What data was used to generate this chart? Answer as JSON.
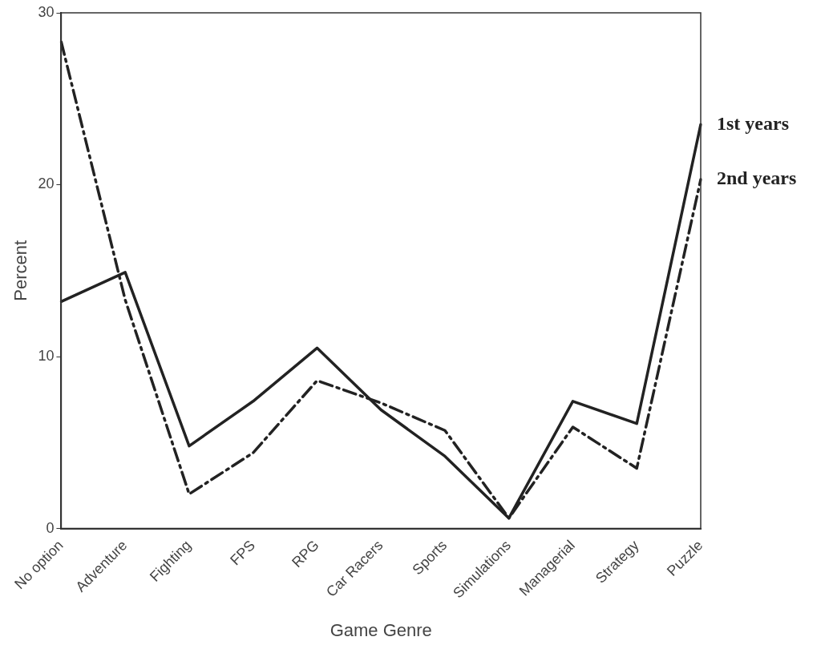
{
  "chart_data": {
    "type": "line",
    "xlabel": "Game Genre",
    "ylabel": "Percent",
    "categories": [
      "No option",
      "Adventure",
      "Fighting",
      "FPS",
      "RPG",
      "Car Racers",
      "Sports",
      "Simulations",
      "Managerial",
      "Strategy",
      "Puzzle"
    ],
    "series": [
      {
        "name": "1st years",
        "color": "#222222",
        "line_style": "solid",
        "values": [
          13.2,
          14.9,
          4.8,
          7.4,
          10.5,
          6.9,
          4.2,
          0.6,
          7.4,
          6.1,
          23.5
        ]
      },
      {
        "name": "2nd years",
        "color": "#222222",
        "line_style": "dashed",
        "values": [
          28.3,
          13.3,
          2.0,
          4.4,
          8.6,
          7.3,
          5.7,
          0.6,
          5.9,
          3.5,
          20.3
        ]
      }
    ],
    "ylim": [
      0,
      30
    ],
    "yticks": [
      0,
      10,
      20,
      30
    ],
    "grid": false,
    "marker": "none"
  }
}
